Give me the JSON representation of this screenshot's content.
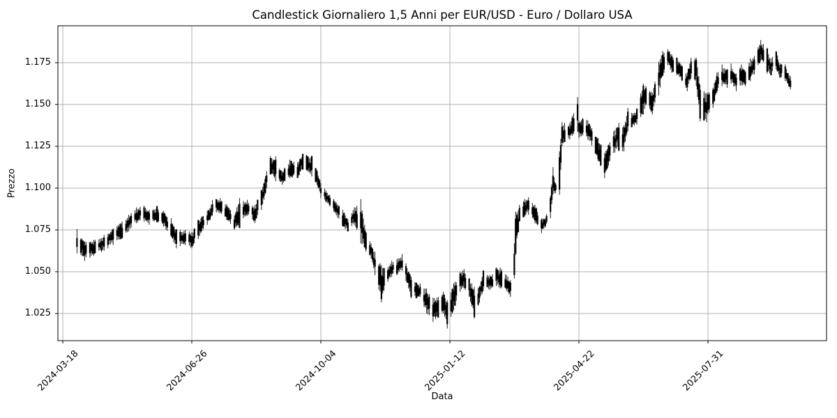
{
  "figure": {
    "background_color": "#ffffff",
    "grid_color": "#b0b0b0",
    "spine_color": "#000000",
    "candle_color": "#000000"
  },
  "chart_data": {
    "type": "candlestick",
    "title": "Candlestick Giornaliero 1,5 Anni per EUR/USD - Euro / Dollaro USA",
    "xlabel": "Data",
    "ylabel": "Prezzo",
    "series_name": "EUR/USD - Euro / Dollaro USA",
    "grid": true,
    "legend": "none",
    "x_tick_labels": [
      "2024-03-18",
      "2024-06-26",
      "2024-10-04",
      "2025-01-12",
      "2025-04-22",
      "2025-07-31"
    ],
    "x_tick_days": [
      0,
      100,
      200,
      300,
      400,
      500
    ],
    "date_origin": "2024-03-18",
    "y_tick_labels": [
      "1.175",
      "1.150",
      "1.125",
      "1.100",
      "1.075",
      "1.050",
      "1.025"
    ],
    "y_ticks": [
      1.175,
      1.15,
      1.125,
      1.1,
      1.075,
      1.05,
      1.025
    ],
    "ylim": [
      1.00875,
      1.1971
    ],
    "xlim_days": [
      -3.8,
      592
    ],
    "envelope_format": "[day_offset_from_2024-03-18, daily_low, daily_high] sampled envelope of the candle series",
    "envelope": [
      [
        11,
        1.061,
        1.0755
      ],
      [
        17,
        1.0565,
        1.068
      ],
      [
        24,
        1.0595,
        1.069
      ],
      [
        32,
        1.0625,
        1.072
      ],
      [
        39,
        1.066,
        1.076
      ],
      [
        46,
        1.07,
        1.08
      ],
      [
        51,
        1.074,
        1.084
      ],
      [
        57,
        1.079,
        1.0885
      ],
      [
        63,
        1.08,
        1.0895
      ],
      [
        67,
        1.078,
        1.087
      ],
      [
        73,
        1.0795,
        1.0895
      ],
      [
        78,
        1.077,
        1.0865
      ],
      [
        84,
        1.071,
        1.082
      ],
      [
        88,
        1.064,
        1.0755
      ],
      [
        95,
        1.066,
        1.075
      ],
      [
        100,
        1.064,
        1.0738
      ],
      [
        105,
        1.0695,
        1.081
      ],
      [
        112,
        1.078,
        1.0865
      ],
      [
        116,
        1.0835,
        1.0928
      ],
      [
        122,
        1.085,
        1.094
      ],
      [
        127,
        1.081,
        1.0905
      ],
      [
        133,
        1.075,
        1.0835
      ],
      [
        137,
        1.076,
        1.094
      ],
      [
        143,
        1.0835,
        1.093
      ],
      [
        149,
        1.079,
        1.09
      ],
      [
        154,
        1.087,
        1.099
      ],
      [
        161,
        1.108,
        1.119
      ],
      [
        165,
        1.104,
        1.119
      ],
      [
        170,
        1.102,
        1.11
      ],
      [
        176,
        1.106,
        1.117
      ],
      [
        182,
        1.106,
        1.1155
      ],
      [
        186,
        1.111,
        1.1205
      ],
      [
        193,
        1.107,
        1.1195
      ],
      [
        197,
        1.102,
        1.111
      ],
      [
        200,
        1.094,
        1.103
      ],
      [
        204,
        1.0915,
        1.0985
      ],
      [
        210,
        1.086,
        1.0935
      ],
      [
        217,
        1.077,
        1.087
      ],
      [
        221,
        1.074,
        1.0815
      ],
      [
        226,
        1.078,
        1.0885
      ],
      [
        231,
        1.067,
        1.0935
      ],
      [
        235,
        1.062,
        1.074
      ],
      [
        239,
        1.058,
        1.067
      ],
      [
        242,
        1.048,
        1.062
      ],
      [
        247,
        1.0317,
        1.054
      ],
      [
        252,
        1.044,
        1.0525
      ],
      [
        255,
        1.047,
        1.0565
      ],
      [
        259,
        1.048,
        1.0575
      ],
      [
        263,
        1.0505,
        1.0605
      ],
      [
        266,
        1.0445,
        1.055
      ],
      [
        270,
        1.034,
        1.047
      ],
      [
        274,
        1.034,
        1.0435
      ],
      [
        277,
        1.035,
        1.043
      ],
      [
        282,
        1.025,
        1.04
      ],
      [
        287,
        1.02,
        1.0345
      ],
      [
        291,
        1.0225,
        1.035
      ],
      [
        295,
        1.025,
        1.038
      ],
      [
        298,
        1.016,
        1.033
      ],
      [
        303,
        1.027,
        1.043
      ],
      [
        308,
        1.038,
        1.05
      ],
      [
        311,
        1.04,
        1.0515
      ],
      [
        315,
        1.035,
        1.046
      ],
      [
        319,
        1.022,
        1.041
      ],
      [
        323,
        1.0315,
        1.0415
      ],
      [
        326,
        1.0385,
        1.051
      ],
      [
        331,
        1.039,
        1.048
      ],
      [
        336,
        1.0415,
        1.0525
      ],
      [
        339,
        1.04,
        1.0525
      ],
      [
        344,
        1.0385,
        1.048
      ],
      [
        347,
        1.035,
        1.045
      ],
      [
        350,
        1.046,
        1.067
      ],
      [
        351,
        1.06,
        1.086
      ],
      [
        354,
        1.08,
        1.09
      ],
      [
        358,
        1.083,
        1.0935
      ],
      [
        361,
        1.084,
        1.0945
      ],
      [
        366,
        1.079,
        1.09
      ],
      [
        371,
        1.073,
        1.082
      ],
      [
        374,
        1.0765,
        1.082
      ],
      [
        378,
        1.082,
        1.0955
      ],
      [
        380,
        1.096,
        1.1125
      ],
      [
        382,
        1.097,
        1.103
      ],
      [
        385,
        1.096,
        1.122
      ],
      [
        387,
        1.125,
        1.1395
      ],
      [
        389,
        1.1275,
        1.139
      ],
      [
        393,
        1.129,
        1.139
      ],
      [
        399,
        1.1335,
        1.1545
      ],
      [
        400,
        1.13,
        1.1405
      ],
      [
        403,
        1.1315,
        1.142
      ],
      [
        407,
        1.129,
        1.1405
      ],
      [
        410,
        1.1255,
        1.136
      ],
      [
        415,
        1.116,
        1.13
      ],
      [
        420,
        1.106,
        1.121
      ],
      [
        423,
        1.1135,
        1.126
      ],
      [
        427,
        1.121,
        1.134
      ],
      [
        431,
        1.122,
        1.139
      ],
      [
        435,
        1.122,
        1.1375
      ],
      [
        438,
        1.134,
        1.148
      ],
      [
        443,
        1.1375,
        1.145
      ],
      [
        445,
        1.138,
        1.148
      ],
      [
        450,
        1.144,
        1.1625
      ],
      [
        452,
        1.1495,
        1.161
      ],
      [
        457,
        1.144,
        1.157
      ],
      [
        462,
        1.1555,
        1.1755
      ],
      [
        465,
        1.167,
        1.182
      ],
      [
        469,
        1.1735,
        1.183
      ],
      [
        472,
        1.169,
        1.18
      ],
      [
        476,
        1.1675,
        1.178
      ],
      [
        480,
        1.164,
        1.1735
      ],
      [
        484,
        1.158,
        1.169
      ],
      [
        487,
        1.1655,
        1.178
      ],
      [
        491,
        1.161,
        1.178
      ],
      [
        494,
        1.14,
        1.162
      ],
      [
        499,
        1.1395,
        1.157
      ],
      [
        504,
        1.148,
        1.16
      ],
      [
        507,
        1.157,
        1.169
      ],
      [
        511,
        1.161,
        1.174
      ],
      [
        515,
        1.16,
        1.171
      ],
      [
        518,
        1.1625,
        1.1745
      ],
      [
        522,
        1.158,
        1.1685
      ],
      [
        526,
        1.1615,
        1.174
      ],
      [
        529,
        1.161,
        1.17
      ],
      [
        533,
        1.164,
        1.1775
      ],
      [
        536,
        1.168,
        1.179
      ],
      [
        541,
        1.176,
        1.1885
      ],
      [
        546,
        1.1685,
        1.184
      ],
      [
        549,
        1.1675,
        1.1775
      ],
      [
        553,
        1.171,
        1.182
      ],
      [
        556,
        1.166,
        1.1745
      ],
      [
        560,
        1.164,
        1.174
      ],
      [
        564,
        1.159,
        1.167
      ]
    ]
  }
}
